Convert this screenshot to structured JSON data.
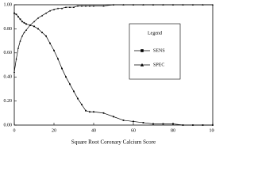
{
  "chart_data": {
    "type": "line",
    "xlabel": "Square Root Coronary Calcium Score",
    "x": [
      0,
      1,
      2,
      3,
      4,
      5,
      6,
      8,
      10,
      12,
      14,
      16,
      18,
      20,
      22,
      24,
      26,
      28,
      30,
      32,
      34,
      36,
      38,
      40,
      45,
      50,
      55,
      60,
      65,
      70,
      75,
      80,
      85,
      90,
      95,
      100
    ],
    "series": [
      {
        "name": "SENS",
        "color": "#000000",
        "marker": "square",
        "values": [
          0.93,
          0.92,
          0.9,
          0.88,
          0.86,
          0.85,
          0.84,
          0.83,
          0.82,
          0.8,
          0.77,
          0.74,
          0.68,
          0.62,
          0.55,
          0.47,
          0.4,
          0.34,
          0.28,
          0.22,
          0.17,
          0.12,
          0.11,
          0.11,
          0.1,
          0.07,
          0.04,
          0.03,
          0.02,
          0.01,
          0.01,
          0.01,
          0,
          0,
          0,
          0
        ]
      },
      {
        "name": "SPEC",
        "color": "#000000",
        "marker": "triangle",
        "values": [
          0.44,
          0.55,
          0.64,
          0.7,
          0.74,
          0.77,
          0.79,
          0.83,
          0.86,
          0.89,
          0.91,
          0.93,
          0.95,
          0.96,
          0.97,
          0.97,
          0.98,
          0.98,
          0.98,
          0.99,
          0.99,
          0.99,
          0.99,
          0.99,
          0.99,
          1,
          1,
          1,
          1,
          1,
          1,
          1,
          1,
          1,
          1,
          1
        ]
      }
    ],
    "legend_title": "Legend",
    "legend_position": "center-right",
    "xlim": [
      0,
      100
    ],
    "xticks": [
      0,
      20,
      40,
      60,
      80,
      100
    ],
    "ylim": [
      0,
      1
    ],
    "yticks": [
      {
        "value": 0,
        "label": "0.00"
      },
      {
        "value": 0.2,
        "label": "0.20"
      },
      {
        "value": 0.4,
        "label": "0.40"
      },
      {
        "value": 0.6,
        "label": "0.60"
      },
      {
        "value": 0.8,
        "label": "0.80"
      },
      {
        "value": 1,
        "label": "1.00"
      }
    ],
    "grid": false
  }
}
